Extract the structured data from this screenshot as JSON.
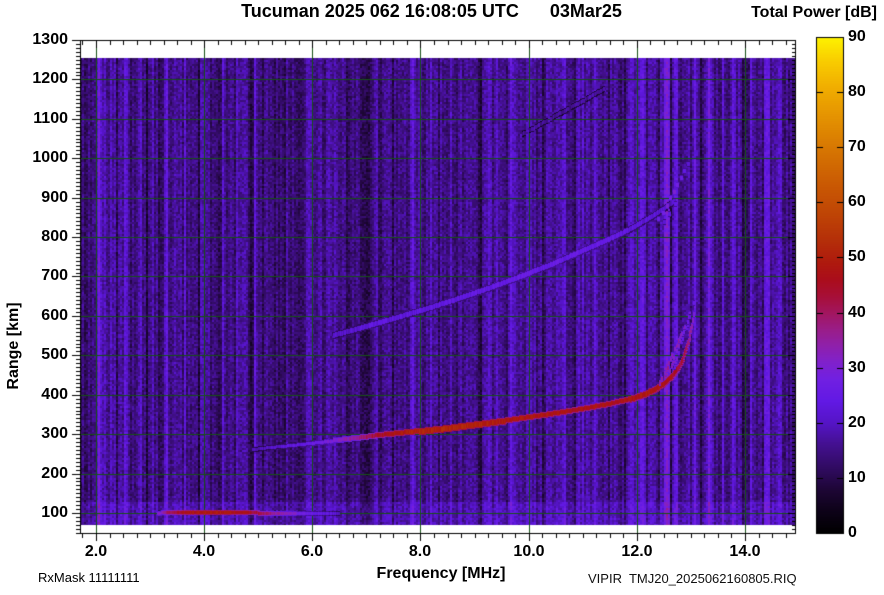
{
  "header": {
    "title": "Tucuman 2025 062 16:08:05 UTC",
    "date": "03Mar25"
  },
  "footer": {
    "rxmask": "RxMask 11111111",
    "filename": "VIPIR  TMJ20_2025062160805.RIQ"
  },
  "colorbar": {
    "title": "Total Power [dB]",
    "min": 0,
    "max": 90,
    "tick_labels": [
      "90",
      "80",
      "70",
      "60",
      "50",
      "40",
      "30",
      "20",
      "10",
      "0"
    ],
    "stops": [
      [
        0,
        "#000000"
      ],
      [
        4,
        "#0d0218"
      ],
      [
        8,
        "#1e0636"
      ],
      [
        12,
        "#310b62"
      ],
      [
        16,
        "#43108e"
      ],
      [
        20,
        "#5514c6"
      ],
      [
        24,
        "#6219e4"
      ],
      [
        28,
        "#7120e2"
      ],
      [
        31,
        "#8021cc"
      ],
      [
        34,
        "#8f20ac"
      ],
      [
        37,
        "#9a1d88"
      ],
      [
        40,
        "#a21660"
      ],
      [
        43,
        "#a70f38"
      ],
      [
        46,
        "#aa0d1c"
      ],
      [
        49,
        "#ae190e"
      ],
      [
        53,
        "#b42e09"
      ],
      [
        58,
        "#bf4505"
      ],
      [
        63,
        "#c95803"
      ],
      [
        69,
        "#d57302"
      ],
      [
        75,
        "#e39001"
      ],
      [
        81,
        "#f1ae00"
      ],
      [
        86,
        "#f9cf00"
      ],
      [
        90,
        "#fdf200"
      ]
    ]
  },
  "axes": {
    "x": {
      "title": "Frequency [MHz]",
      "tick_labels": [
        "2.0",
        "4.0",
        "6.0",
        "8.0",
        "10.0",
        "12.0",
        "14.0"
      ],
      "min": 1.7,
      "max": 14.93,
      "minor_step": 0.25,
      "major_step": 2
    },
    "y": {
      "title": "Range [km]",
      "tick_labels": [
        "1300",
        "1200",
        "1100",
        "1000",
        "900",
        "800",
        "700",
        "600",
        "500",
        "400",
        "300",
        "200",
        "100"
      ],
      "min": 49,
      "max": 1300,
      "minor_step": 10,
      "major_step": 100
    }
  },
  "chart_data": {
    "type": "heatmap",
    "title": "Tucuman 2025 062 16:08:05 UTC 03Mar25",
    "xlabel": "Frequency [MHz]",
    "ylabel": "Range [km]",
    "zlabel": "Total Power [dB]",
    "xlim": [
      1.7,
      14.93
    ],
    "ylim": [
      49,
      1300
    ],
    "zlim": [
      0,
      90
    ],
    "grid": {
      "x_major_mhz": 2,
      "y_major_km": 100,
      "on": true
    },
    "gridline_color": "#175117",
    "data_extent": {
      "f_mhz": [
        1.7,
        14.93
      ],
      "range_km": [
        70,
        1254
      ]
    },
    "noise_base": 15,
    "noise_var": 5.5,
    "noise_seed": 20250362,
    "bottom_band": {
      "range_km": [
        68,
        127
      ],
      "boost_db": 3.5
    },
    "rfi_bands": [
      [
        2.06,
        9,
        0.05
      ],
      [
        2.3,
        7,
        0.04
      ],
      [
        2.56,
        7,
        0.04
      ],
      [
        2.8,
        6,
        0.04
      ],
      [
        3.06,
        6,
        0.04
      ],
      [
        3.3,
        5,
        0.04
      ],
      [
        3.66,
        6,
        0.04
      ],
      [
        3.95,
        4,
        0.03
      ],
      [
        4.35,
        6,
        0.04
      ],
      [
        4.62,
        4,
        0.03
      ],
      [
        4.95,
        5,
        0.04
      ],
      [
        5.3,
        4,
        0.03
      ],
      [
        5.62,
        6,
        0.04
      ],
      [
        5.95,
        4,
        0.03
      ],
      [
        6.3,
        7,
        0.04
      ],
      [
        6.56,
        5,
        0.03
      ],
      [
        6.9,
        4,
        0.03
      ],
      [
        7.2,
        5,
        0.03
      ],
      [
        7.55,
        4,
        0.03
      ],
      [
        7.85,
        6,
        0.04
      ],
      [
        8.2,
        4,
        0.03
      ],
      [
        8.55,
        5,
        0.03
      ],
      [
        8.9,
        4,
        0.03
      ],
      [
        9.25,
        6,
        0.04
      ],
      [
        9.65,
        7,
        0.04
      ],
      [
        10.0,
        4,
        0.03
      ],
      [
        10.35,
        6,
        0.04
      ],
      [
        10.65,
        5,
        0.03
      ],
      [
        11.0,
        4,
        0.03
      ],
      [
        11.25,
        6,
        0.04
      ],
      [
        11.6,
        5,
        0.03
      ],
      [
        11.9,
        7,
        0.04
      ],
      [
        12.1,
        8,
        0.04
      ],
      [
        12.55,
        13,
        0.05
      ],
      [
        12.72,
        8,
        0.03
      ],
      [
        13.08,
        12,
        0.04
      ],
      [
        13.35,
        13,
        0.05
      ],
      [
        13.6,
        6,
        0.03
      ],
      [
        13.78,
        9,
        0.04
      ],
      [
        14.1,
        7,
        0.04
      ],
      [
        14.4,
        14,
        0.05
      ],
      [
        14.65,
        9,
        0.04
      ]
    ],
    "traces": {
      "es_layer": {
        "name": "sporadic-E trace",
        "h": 3,
        "points": [
          [
            3.15,
            101,
            30
          ],
          [
            3.35,
            102,
            40
          ],
          [
            3.6,
            103,
            46
          ],
          [
            4.0,
            103,
            49
          ],
          [
            4.4,
            103,
            49
          ],
          [
            4.8,
            102,
            46
          ],
          [
            5.1,
            101,
            41
          ],
          [
            5.4,
            101,
            34
          ],
          [
            5.8,
            100,
            28
          ],
          [
            6.2,
            100,
            24
          ],
          [
            6.5,
            99,
            21
          ]
        ]
      },
      "f2_layer": {
        "name": "F-layer main trace",
        "points": [
          [
            4.9,
            262,
            18,
            3
          ],
          [
            5.2,
            267,
            20,
            3
          ],
          [
            5.6,
            272,
            23,
            3
          ],
          [
            6.0,
            278,
            26,
            3
          ],
          [
            6.4,
            284,
            30,
            4
          ],
          [
            6.8,
            290,
            36,
            4
          ],
          [
            7.2,
            297,
            44,
            4
          ],
          [
            7.6,
            303,
            49,
            4
          ],
          [
            8.0,
            308,
            51,
            5
          ],
          [
            8.4,
            314,
            51,
            5
          ],
          [
            8.8,
            321,
            51,
            5
          ],
          [
            9.2,
            328,
            50,
            5
          ],
          [
            9.6,
            335,
            49,
            4
          ],
          [
            10.0,
            343,
            48,
            4
          ],
          [
            10.4,
            351,
            48,
            4
          ],
          [
            10.8,
            360,
            47,
            4
          ],
          [
            11.2,
            369,
            47,
            4
          ],
          [
            11.6,
            380,
            47,
            4
          ],
          [
            11.9,
            390,
            48,
            5
          ],
          [
            12.15,
            402,
            49,
            5
          ],
          [
            12.35,
            415,
            49,
            5
          ],
          [
            12.5,
            428,
            48,
            5
          ],
          [
            12.65,
            446,
            46,
            6
          ],
          [
            12.78,
            468,
            44,
            6
          ],
          [
            12.88,
            498,
            41,
            6
          ],
          [
            12.96,
            535,
            37,
            6
          ],
          [
            13.02,
            575,
            33,
            5
          ],
          [
            13.07,
            618,
            28,
            5
          ]
        ]
      },
      "f2_second_hop": {
        "name": "F-layer second hop trace",
        "h": 5,
        "points": [
          [
            6.4,
            552,
            20
          ],
          [
            6.9,
            570,
            22
          ],
          [
            7.4,
            590,
            23
          ],
          [
            8.0,
            614,
            23
          ],
          [
            8.6,
            640,
            24
          ],
          [
            9.2,
            668,
            24
          ],
          [
            9.8,
            698,
            25
          ],
          [
            10.4,
            730,
            25
          ],
          [
            11.0,
            766,
            25
          ],
          [
            11.5,
            796,
            24
          ],
          [
            11.9,
            822,
            23
          ],
          [
            12.2,
            846,
            22
          ],
          [
            12.5,
            872,
            21
          ],
          [
            12.7,
            892,
            20
          ]
        ]
      },
      "f2_third_hop": {
        "name": "faint high-range echo",
        "h": 4,
        "dotted": true,
        "points": [
          [
            9.9,
            1062,
            16
          ],
          [
            10.3,
            1092,
            17
          ],
          [
            10.7,
            1122,
            17
          ],
          [
            11.1,
            1152,
            17
          ],
          [
            11.4,
            1176,
            16
          ]
        ]
      },
      "spread_f_streaks": [
        {
          "f0": 12.42,
          "r0": 425,
          "f1": 12.72,
          "r1": 520,
          "p": 34
        },
        {
          "f0": 12.5,
          "r0": 440,
          "f1": 12.9,
          "r1": 575,
          "p": 36
        },
        {
          "f0": 12.6,
          "r0": 455,
          "f1": 13.0,
          "r1": 610,
          "p": 32
        },
        {
          "f0": 12.7,
          "r0": 470,
          "f1": 13.08,
          "r1": 640,
          "p": 28
        }
      ],
      "spread_scatter": [
        [
          12.4,
          845,
          26
        ],
        [
          12.48,
          862,
          28
        ],
        [
          12.55,
          880,
          30
        ],
        [
          12.62,
          898,
          28
        ],
        [
          12.68,
          915,
          30
        ],
        [
          12.75,
          933,
          28
        ],
        [
          12.82,
          950,
          26
        ],
        [
          12.6,
          858,
          24
        ],
        [
          12.7,
          885,
          24
        ],
        [
          12.88,
          968,
          24
        ],
        [
          12.95,
          985,
          22
        ],
        [
          12.5,
          838,
          22
        ]
      ]
    }
  }
}
